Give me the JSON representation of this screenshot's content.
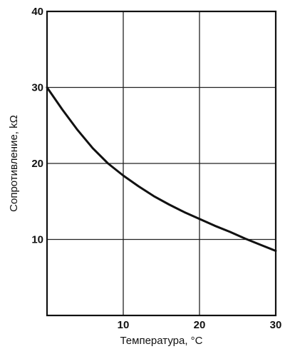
{
  "chart_data": {
    "type": "line",
    "title": "",
    "xlabel": "Температура, °C",
    "ylabel": "Сопротивление, kΩ",
    "xlim": [
      0,
      30
    ],
    "ylim": [
      0,
      40
    ],
    "xticks": [
      10,
      20,
      30
    ],
    "yticks": [
      10,
      20,
      30,
      40
    ],
    "xtick_labels": [
      "10",
      "20",
      "30"
    ],
    "ytick_labels": [
      "10",
      "20",
      "30",
      "40"
    ],
    "grid": true,
    "legend": "none",
    "line_color": "#111111",
    "series": [
      {
        "x": [
          0,
          2,
          4,
          6,
          8,
          10,
          12,
          14,
          16,
          18,
          20,
          22,
          24,
          26,
          28,
          30
        ],
        "y": [
          30.0,
          27.1,
          24.4,
          22.0,
          20.0,
          18.4,
          17.0,
          15.7,
          14.6,
          13.6,
          12.7,
          11.8,
          11.0,
          10.1,
          9.3,
          8.5
        ]
      }
    ]
  }
}
